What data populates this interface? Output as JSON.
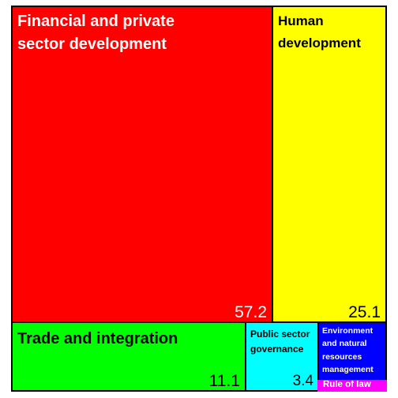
{
  "chart_data": {
    "type": "treemap",
    "items": [
      {
        "label": "Financial and private sector development",
        "value": 57.2,
        "value_label": "57.2",
        "color": "#ff0000",
        "text_color": "#ffffff"
      },
      {
        "label": "Human development",
        "value": 25.1,
        "value_label": "25.1",
        "color": "#ffff00",
        "text_color": "#000000"
      },
      {
        "label": "Trade and integration",
        "value": 11.1,
        "value_label": "11.1",
        "color": "#00ff00",
        "text_color": "#000000"
      },
      {
        "label": "Public sector governance",
        "value": 3.4,
        "value_label": "3.4",
        "color": "#00ffff",
        "text_color": "#000000"
      },
      {
        "label": "Environment and natural resources management",
        "value": 2.2,
        "value_label": "",
        "color": "#0000ff",
        "text_color": "#ffffff"
      },
      {
        "label": "Rule of law",
        "value": 1.0,
        "value_label": "",
        "color": "#ff00ff",
        "text_color": "#ffffff"
      }
    ]
  }
}
